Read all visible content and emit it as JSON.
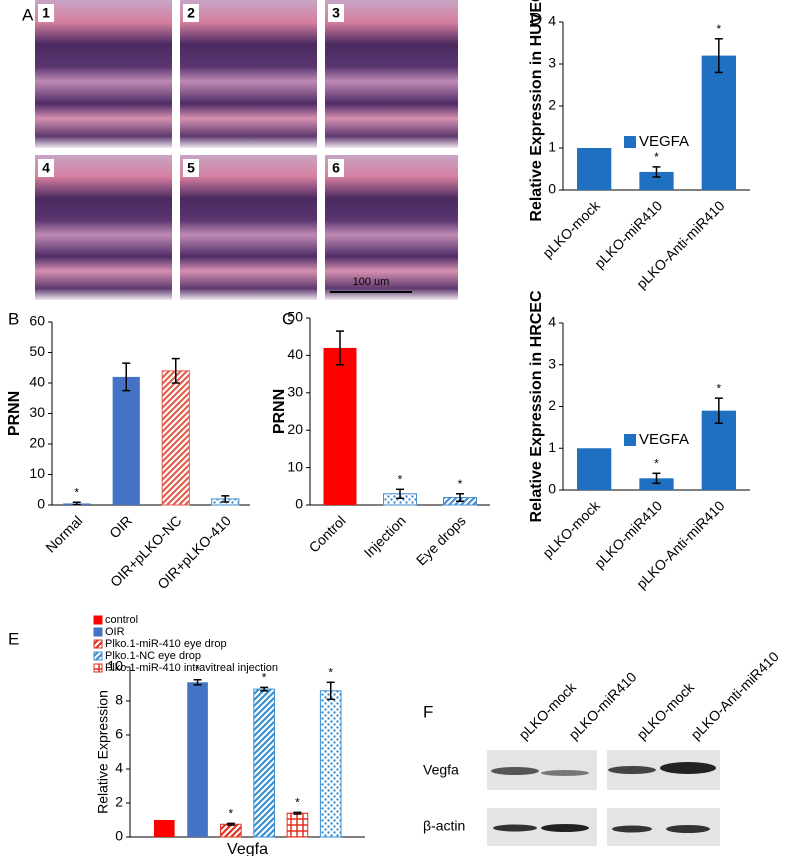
{
  "panel_labels": [
    "A",
    "B",
    "C",
    "D",
    "E",
    "F"
  ],
  "histology": {
    "labels": [
      "1",
      "2",
      "3",
      "4",
      "5",
      "6"
    ],
    "scale_bar": "100 um"
  },
  "blot": {
    "lanes": [
      "pLKO-mock",
      "pLKO-miR410",
      "pLKO-mock",
      "pLKO-Anti-miR410"
    ],
    "rows": [
      "Vegfa",
      "β-actin"
    ]
  },
  "chart_data": [
    {
      "type": "bar",
      "ylabel": "PRNN",
      "categories": [
        "Normal",
        "OIR",
        "OIR+pLKO-NC",
        "OIR+pLKO-410"
      ],
      "values": [
        0.5,
        42,
        44,
        2
      ],
      "errors": [
        0.4,
        4.5,
        4,
        1
      ],
      "colors": [
        "#4472c4",
        "#4472c4",
        "#e0604f",
        "#4a8fd0"
      ],
      "patterns": [
        "solid",
        "solid",
        "hatch",
        "dots"
      ],
      "significance": [
        "*",
        null,
        null,
        null
      ],
      "ylim": [
        0,
        60
      ],
      "yticks": [
        0,
        10,
        20,
        30,
        40,
        50,
        60
      ]
    },
    {
      "type": "bar",
      "ylabel": "PRNN",
      "categories": [
        "Control",
        "Injection",
        "Eye drops"
      ],
      "values": [
        42,
        3,
        2
      ],
      "errors": [
        4.5,
        1.2,
        1
      ],
      "colors": [
        "#ff0000",
        "#4a8fd0",
        "#4a8fd0"
      ],
      "patterns": [
        "solid",
        "dots",
        "hatch"
      ],
      "significance": [
        null,
        "*",
        "*"
      ],
      "ylim": [
        0,
        50
      ],
      "yticks": [
        0,
        10,
        20,
        30,
        40,
        50
      ]
    },
    {
      "type": "bar",
      "ylabel": "Relative Expression in HUVEC",
      "categories": [
        "pLKO-mock",
        "pLKO-miR410",
        "pLKO-Anti-miR410"
      ],
      "series": [
        {
          "name": "VEGFA",
          "color": "#1f70c1",
          "values": [
            1,
            0.43,
            3.2
          ],
          "errors": [
            0,
            0.12,
            0.4
          ],
          "significance": [
            null,
            "*",
            "*"
          ]
        }
      ],
      "ylim": [
        0,
        4
      ],
      "yticks": [
        0,
        1,
        2,
        3,
        4
      ]
    },
    {
      "type": "bar",
      "ylabel": "Relative Expression in HRCEC",
      "categories": [
        "pLKO-mock",
        "pLKO-miR410",
        "pLKO-Anti-miR410"
      ],
      "series": [
        {
          "name": "VEGFA",
          "color": "#1f70c1",
          "values": [
            1,
            0.28,
            1.9
          ],
          "errors": [
            0,
            0.12,
            0.3
          ],
          "significance": [
            null,
            "*",
            "*"
          ]
        }
      ],
      "ylim": [
        0,
        4
      ],
      "yticks": [
        0,
        1,
        2,
        3,
        4
      ]
    },
    {
      "type": "bar",
      "ylabel": "Relative Expression",
      "categories": [
        "Vegfa"
      ],
      "series": [
        {
          "name": "control",
          "color": "#ff0000",
          "pattern": "solid",
          "values": [
            1
          ],
          "errors": [
            0
          ],
          "significance": [
            null
          ]
        },
        {
          "name": "OIR",
          "color": "#4472c4",
          "pattern": "solid",
          "values": [
            9.1
          ],
          "errors": [
            0.15
          ],
          "significance": [
            "*"
          ]
        },
        {
          "name": "Plko.1-miR-410 eye drop",
          "color": "#e03020",
          "pattern": "hatch",
          "values": [
            0.75
          ],
          "errors": [
            0.05
          ],
          "significance": [
            "*"
          ]
        },
        {
          "name": "Plko.1-NC eye drop",
          "color": "#3a8fd0",
          "pattern": "hatch",
          "values": [
            8.7
          ],
          "errors": [
            0.1
          ],
          "significance": [
            "*"
          ]
        },
        {
          "name": "Plko.1-miR-410 intravitreal injection",
          "color": "#e03020",
          "pattern": "checker",
          "values": [
            1.4
          ],
          "errors": [
            0.05
          ],
          "significance": [
            "*"
          ]
        },
        {
          "name": null,
          "color": "#3a8fd0",
          "pattern": "dots",
          "values": [
            8.6
          ],
          "errors": [
            0.5
          ],
          "significance": [
            "*"
          ]
        }
      ],
      "ylim": [
        0,
        10
      ],
      "yticks": [
        0,
        2,
        4,
        6,
        8,
        10
      ]
    }
  ]
}
